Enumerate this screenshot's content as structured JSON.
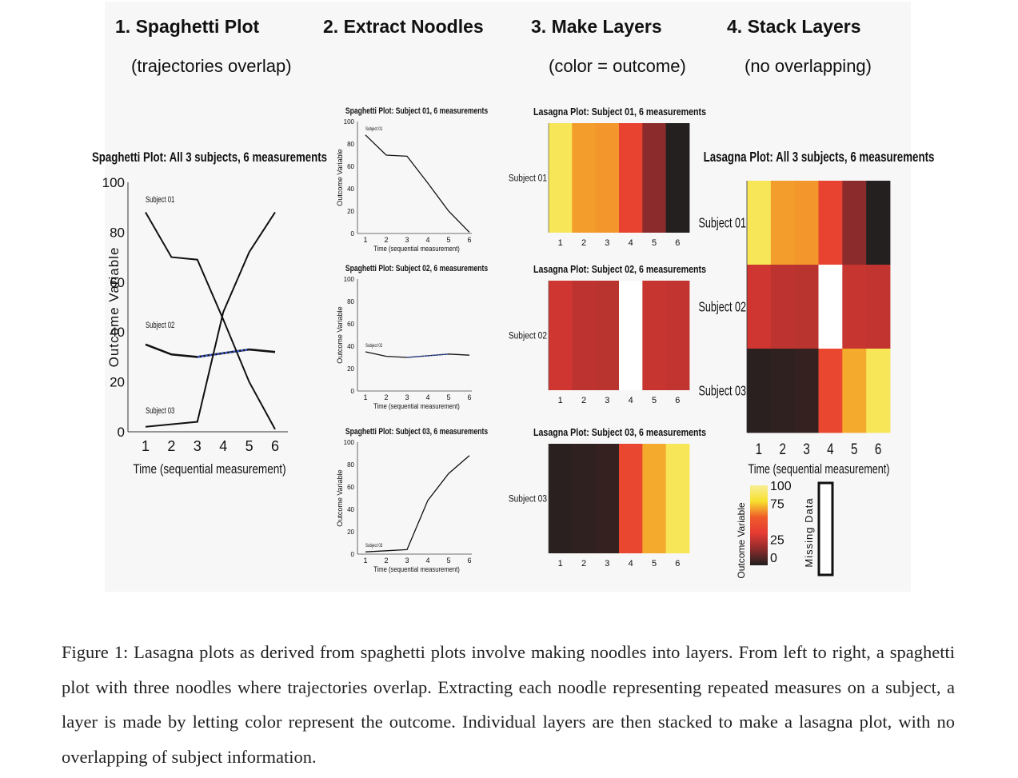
{
  "steps": [
    {
      "title": "1. Spaghetti Plot",
      "subtitle": "(trajectories overlap)"
    },
    {
      "title": "2. Extract Noodles",
      "subtitle": ""
    },
    {
      "title": "3. Make Layers",
      "subtitle": "(color = outcome)"
    },
    {
      "title": "4. Stack Layers",
      "subtitle": "(no overlapping)"
    }
  ],
  "colors": {
    "missing": "#ffffff",
    "interpolated_segment": "#3a56c5",
    "colormap": [
      "#201f1f",
      "#8c2b2b",
      "#e53a33",
      "#ef5a2a",
      "#f7e02e",
      "#f7ee95"
    ]
  },
  "chart_data": [
    {
      "type": "line",
      "title": "Spaghetti Plot:  All 3 subjects, 6 measurements",
      "xlabel": "Time (sequential measurement)",
      "ylabel": "Outcome Variable",
      "x": [
        1,
        2,
        3,
        4,
        5,
        6
      ],
      "xlim": [
        0.5,
        6.5
      ],
      "ylim": [
        0,
        100
      ],
      "yticks": [
        0,
        20,
        40,
        60,
        80,
        100
      ],
      "series": [
        {
          "name": "Subject 01",
          "values": [
            88,
            70,
            69,
            45,
            20,
            1
          ]
        },
        {
          "name": "Subject 02",
          "values": [
            35,
            31,
            30,
            null,
            33,
            32
          ]
        },
        {
          "name": "Subject 03",
          "values": [
            2,
            3,
            4,
            48,
            72,
            88
          ]
        }
      ]
    },
    {
      "type": "line",
      "title": "Spaghetti Plot:  Subject 01, 6 measurements",
      "xlabel": "Time (sequential measurement)",
      "ylabel": "Outcome Variable",
      "x": [
        1,
        2,
        3,
        4,
        5,
        6
      ],
      "ylim": [
        0,
        100
      ],
      "series": [
        {
          "name": "Subject 01",
          "values": [
            88,
            70,
            69,
            45,
            20,
            1
          ]
        }
      ]
    },
    {
      "type": "line",
      "title": "Spaghetti Plot:  Subject 02, 6 measurements",
      "xlabel": "Time (sequential measurement)",
      "ylabel": "Outcome Variable",
      "x": [
        1,
        2,
        3,
        4,
        5,
        6
      ],
      "ylim": [
        0,
        100
      ],
      "series": [
        {
          "name": "Subject 02",
          "values": [
            35,
            31,
            30,
            null,
            33,
            32
          ]
        }
      ]
    },
    {
      "type": "line",
      "title": "Spaghetti Plot:  Subject 03, 6 measurements",
      "xlabel": "Time (sequential measurement)",
      "ylabel": "Outcome Variable",
      "x": [
        1,
        2,
        3,
        4,
        5,
        6
      ],
      "ylim": [
        0,
        100
      ],
      "series": [
        {
          "name": "Subject 03",
          "values": [
            2,
            3,
            4,
            48,
            72,
            88
          ]
        }
      ]
    },
    {
      "type": "heatmap",
      "title": "Lasagna Plot:  Subject 01, 6 measurements",
      "rows": [
        "Subject 01"
      ],
      "columns": [
        1,
        2,
        3,
        4,
        5,
        6
      ],
      "values": [
        [
          88,
          70,
          69,
          45,
          20,
          1
        ]
      ]
    },
    {
      "type": "heatmap",
      "title": "Lasagna Plot:  Subject 02, 6 measurements",
      "rows": [
        "Subject 02"
      ],
      "columns": [
        1,
        2,
        3,
        4,
        5,
        6
      ],
      "values": [
        [
          35,
          31,
          30,
          null,
          33,
          32
        ]
      ]
    },
    {
      "type": "heatmap",
      "title": "Lasagna Plot:  Subject 03, 6 measurements",
      "rows": [
        "Subject 03"
      ],
      "columns": [
        1,
        2,
        3,
        4,
        5,
        6
      ],
      "values": [
        [
          2,
          3,
          4,
          48,
          72,
          88
        ]
      ]
    },
    {
      "type": "heatmap",
      "title": "Lasagna Plot:  All 3 subjects, 6 measurements",
      "xlabel": "Time (sequential measurement)",
      "rows": [
        "Subject 01",
        "Subject 02",
        "Subject 03"
      ],
      "columns": [
        1,
        2,
        3,
        4,
        5,
        6
      ],
      "values": [
        [
          88,
          70,
          69,
          45,
          20,
          1
        ],
        [
          35,
          31,
          30,
          null,
          33,
          32
        ],
        [
          2,
          3,
          4,
          48,
          72,
          88
        ]
      ],
      "colorbar": {
        "label": "Outcome Variable",
        "ticks": [
          0,
          25,
          75,
          100
        ],
        "missing_label": "Missing Data"
      }
    }
  ],
  "caption": "Figure 1:  Lasagna plots as derived from spaghetti plots involve making noodles into layers.  From left to right, a spaghetti plot with three noodles where trajectories overlap.  Extracting each noodle representing repeated measures on a subject, a layer is made by letting color represent the outcome.  Individual layers are then stacked to make a lasagna plot, with no overlapping of subject information."
}
